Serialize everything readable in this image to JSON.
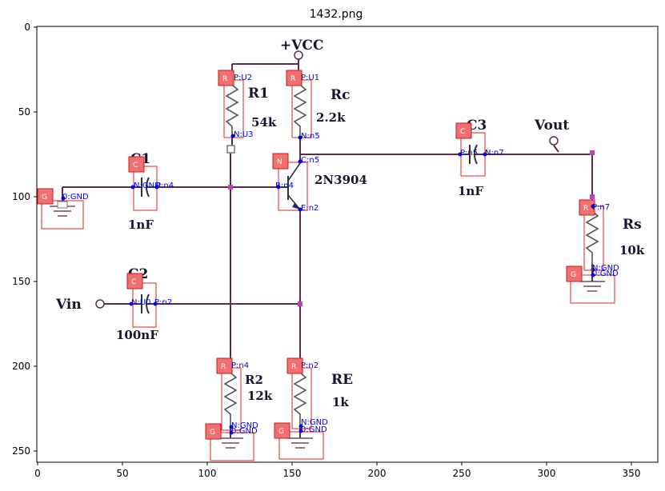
{
  "title": "1432.png",
  "axes": {
    "x_ticks": [
      "0",
      "50",
      "100",
      "150",
      "200",
      "250",
      "300",
      "350"
    ],
    "y_ticks": [
      "0",
      "50",
      "100",
      "150",
      "200",
      "250"
    ]
  },
  "circuit": {
    "power": {
      "label": "+VCC"
    },
    "components": [
      {
        "id": "R1",
        "tag": "R",
        "name": "R1",
        "value": "54k",
        "pin_p": "P:U2",
        "pin_n": "N:U3"
      },
      {
        "id": "Rc",
        "tag": "R",
        "name": "Rc",
        "value": "2.2k",
        "pin_p": "P:U1",
        "pin_n": "N:n5"
      },
      {
        "id": "Q",
        "tag": "N",
        "name": "2N3904",
        "pin_c": "C:n5",
        "pin_b": "B:n4",
        "pin_e": "E:n2"
      },
      {
        "id": "C1",
        "tag": "C",
        "name": "C1",
        "value": "1nF",
        "pin_n": "N:GND",
        "pin_p": "P:n4"
      },
      {
        "id": "C2",
        "tag": "C",
        "name": "C2",
        "value": "100nF",
        "pin_n": "N:U0",
        "pin_p": "P:n2"
      },
      {
        "id": "C3",
        "tag": "C",
        "name": "C3",
        "value": "1nF",
        "pin_p": "P:n5",
        "pin_n": "N:n7"
      },
      {
        "id": "Rs",
        "tag": "R",
        "name": "Rs",
        "value": "10k",
        "pin_p": "P:n7",
        "pin_n": "N:GND"
      },
      {
        "id": "R2",
        "tag": "R",
        "name": "R2",
        "value": "12k",
        "pin_p": "P:n4",
        "pin_n": "N:GND"
      },
      {
        "id": "RE",
        "tag": "R",
        "name": "RE",
        "value": "1k",
        "pin_p": "P:n2",
        "pin_n": "N:GND"
      }
    ],
    "grounds": [
      {
        "tag": "G",
        "pin": "0:GND"
      },
      {
        "tag": "G",
        "pin": "0:GND"
      },
      {
        "tag": "G",
        "pin": "0:GND"
      },
      {
        "tag": "G",
        "pin": "0:GND"
      }
    ],
    "ports": {
      "vin": "Vin",
      "vout": "Vout"
    }
  }
}
